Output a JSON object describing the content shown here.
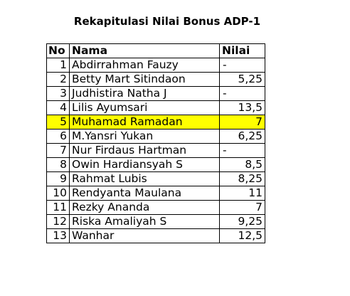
{
  "title": "Rekapitulasi Nilai Bonus ADP-1",
  "highlight_color": "#ffff00",
  "table": {
    "headers": {
      "no": "No",
      "nama": "Nama",
      "nilai": "Nilai"
    },
    "rows": [
      {
        "no": "1",
        "nama": "Abdirrahman Fauzy",
        "nilai": "-"
      },
      {
        "no": "2",
        "nama": "Betty Mart Sitindaon",
        "nilai": "5,25"
      },
      {
        "no": "3",
        "nama": "Judhistira Natha J",
        "nilai": "-"
      },
      {
        "no": "4",
        "nama": "Lilis Ayumsari",
        "nilai": "13,5"
      },
      {
        "no": "5",
        "nama": "Muhamad Ramadan",
        "nilai": "7",
        "highlighted": true
      },
      {
        "no": "6",
        "nama": "M.Yansri Yukan",
        "nilai": "6,25"
      },
      {
        "no": "7",
        "nama": "Nur Firdaus Hartman",
        "nilai": "-"
      },
      {
        "no": "8",
        "nama": "Owin Hardiansyah S",
        "nilai": "8,5"
      },
      {
        "no": "9",
        "nama": "Rahmat Lubis",
        "nilai": "8,25"
      },
      {
        "no": "10",
        "nama": "Rendyanta Maulana",
        "nilai": "11"
      },
      {
        "no": "11",
        "nama": "Rezky Ananda",
        "nilai": "7"
      },
      {
        "no": "12",
        "nama": "Riska Amaliyah S",
        "nilai": "9,25"
      },
      {
        "no": "13",
        "nama": "Wanhar",
        "nilai": "12,5"
      }
    ]
  }
}
